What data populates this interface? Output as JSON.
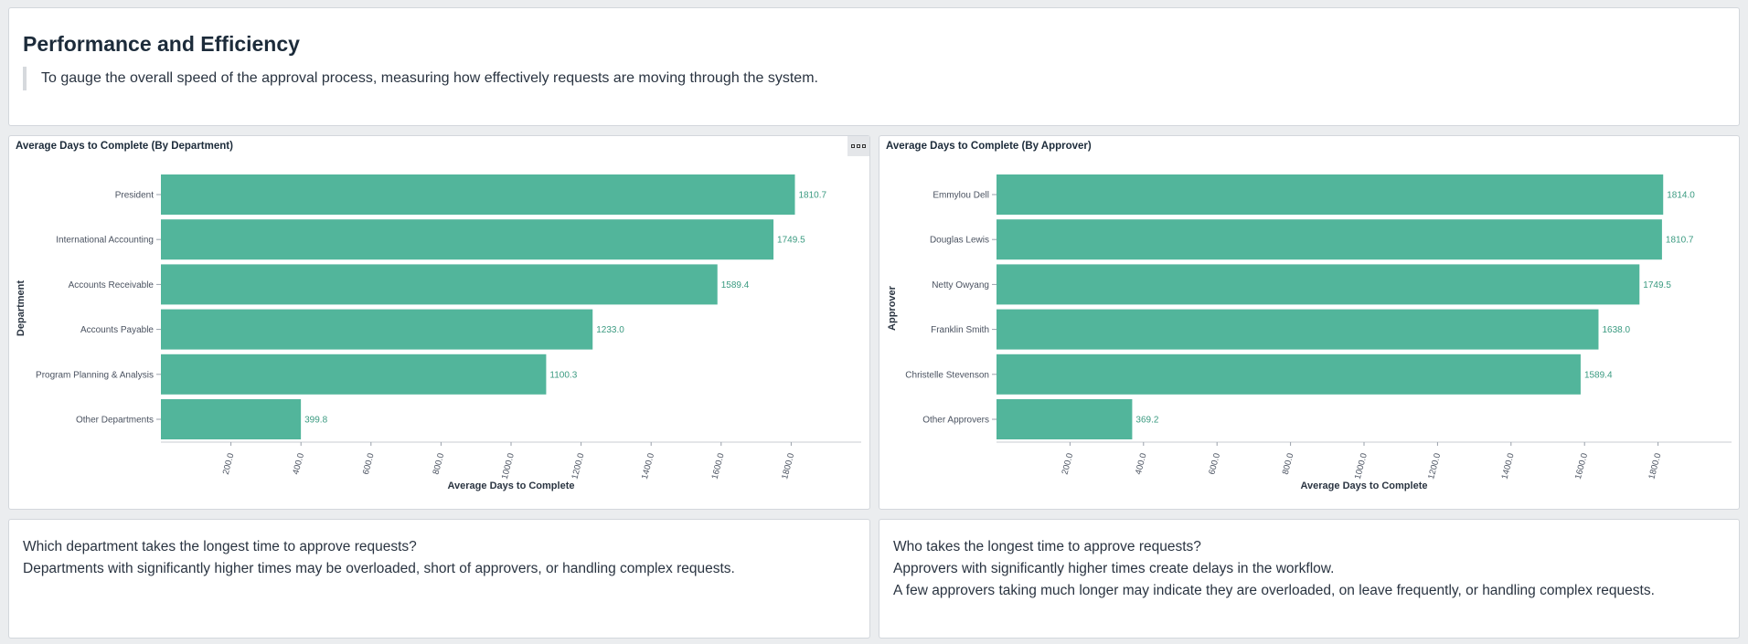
{
  "header": {
    "title": "Performance and Efficiency",
    "description": "To gauge the overall speed of the approval process, measuring how effectively requests are moving through the system."
  },
  "colors": {
    "bar": "#52b59b",
    "value_label": "#3a9a80",
    "axis_text": "#4a5260"
  },
  "chart_data": [
    {
      "type": "bar",
      "orientation": "horizontal",
      "title": "Average Days to Complete (By Department)",
      "xlabel": "Average Days to Complete",
      "ylabel": "Department",
      "xlim": [
        0,
        2000
      ],
      "xticks": [
        "200.0",
        "400.0",
        "600.0",
        "800.0",
        "1000.0",
        "1200.0",
        "1400.0",
        "1600.0",
        "1800.0"
      ],
      "categories": [
        "President",
        "International Accounting",
        "Accounts Receivable",
        "Accounts Payable",
        "Program Planning & Analysis",
        "Other Departments"
      ],
      "values": [
        1810.7,
        1749.5,
        1589.4,
        1233.0,
        1100.3,
        399.8
      ],
      "value_labels": [
        "1810.7",
        "1749.5",
        "1589.4",
        "1233.0",
        "1100.3",
        "399.8"
      ]
    },
    {
      "type": "bar",
      "orientation": "horizontal",
      "title": "Average Days to Complete (By Approver)",
      "xlabel": "Average Days to Complete",
      "ylabel": "Approver",
      "xlim": [
        0,
        2000
      ],
      "xticks": [
        "200.0",
        "400.0",
        "600.0",
        "800.0",
        "1000.0",
        "1200.0",
        "1400.0",
        "1600.0",
        "1800.0"
      ],
      "categories": [
        "Emmylou Dell",
        "Douglas Lewis",
        "Netty Owyang",
        "Franklin Smith",
        "Christelle Stevenson",
        "Other Approvers"
      ],
      "values": [
        1814.0,
        1810.7,
        1749.5,
        1638.0,
        1589.4,
        369.2
      ],
      "value_labels": [
        "1814.0",
        "1810.7",
        "1749.5",
        "1638.0",
        "1589.4",
        "369.2"
      ]
    }
  ],
  "notes": {
    "department": [
      "Which department takes the longest time to approve requests?",
      "Departments with significantly higher times may be overloaded, short of approvers, or handling complex requests."
    ],
    "approver": [
      "Who takes the longest time to approve requests?",
      "Approvers with significantly higher times create delays in the workflow.",
      "A few approvers taking much longer may indicate they are overloaded, on leave frequently, or handling complex requests."
    ]
  }
}
